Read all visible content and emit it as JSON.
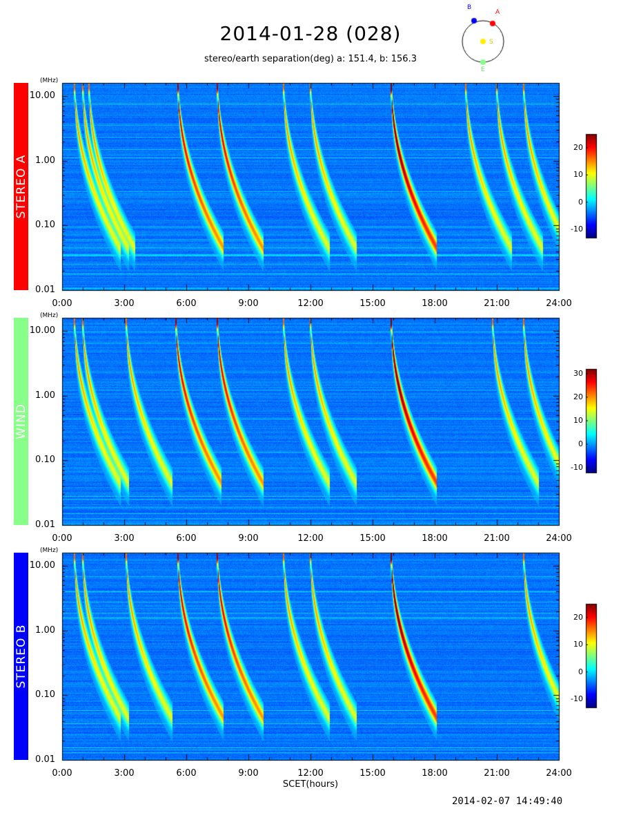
{
  "title": "2014-01-28 (028)",
  "subtitle": "stereo/earth separation(deg) a: 151.4, b: 156.3",
  "footer_timestamp": "2014-02-07 14:49:40",
  "orbit_diagram": {
    "labels": {
      "a": "A",
      "b": "B",
      "e": "E",
      "s": "S"
    },
    "colors": {
      "a": "#ff0000",
      "b": "#0000ff",
      "e": "#88ff88",
      "s": "#ffee00"
    }
  },
  "chart_data": {
    "type": "heatmap",
    "xlabel": "SCET(hours)",
    "x_ticks": [
      "0:00",
      "3:00",
      "6:00",
      "9:00",
      "12:00",
      "15:00",
      "18:00",
      "21:00",
      "24:00"
    ],
    "x_range_hours": [
      0,
      24
    ],
    "y_unit": "(MHz)",
    "y_scale": "log",
    "y_range_mhz": [
      0.01,
      16
    ],
    "y_ticks": [
      "10.00",
      "1.00",
      "0.10",
      "0.01"
    ],
    "colormap": "jet",
    "panels": [
      {
        "name": "STEREO A",
        "label_color": "#ff0000",
        "colorbar_range": [
          -13,
          25
        ],
        "colorbar_ticks": [
          "20",
          "10",
          "0",
          "-10"
        ],
        "bursts_hours": [
          0.6,
          1.0,
          1.3,
          5.6,
          7.5,
          10.7,
          12.0,
          15.9,
          19.5,
          21.0,
          22.3
        ]
      },
      {
        "name": "WIND",
        "label_color": "#88ff88",
        "colorbar_range": [
          -12,
          32
        ],
        "colorbar_ticks": [
          "30",
          "20",
          "10",
          "0",
          "-10"
        ],
        "bursts_hours": [
          0.6,
          1.0,
          3.1,
          5.5,
          7.5,
          10.7,
          12.0,
          15.9,
          20.8,
          22.3
        ]
      },
      {
        "name": "STEREO B",
        "label_color": "#0000ff",
        "colorbar_range": [
          -13,
          25
        ],
        "colorbar_ticks": [
          "20",
          "10",
          "0",
          "-10"
        ],
        "bursts_hours": [
          0.6,
          1.0,
          3.1,
          5.6,
          7.5,
          10.7,
          12.0,
          15.9,
          22.3
        ]
      }
    ]
  }
}
